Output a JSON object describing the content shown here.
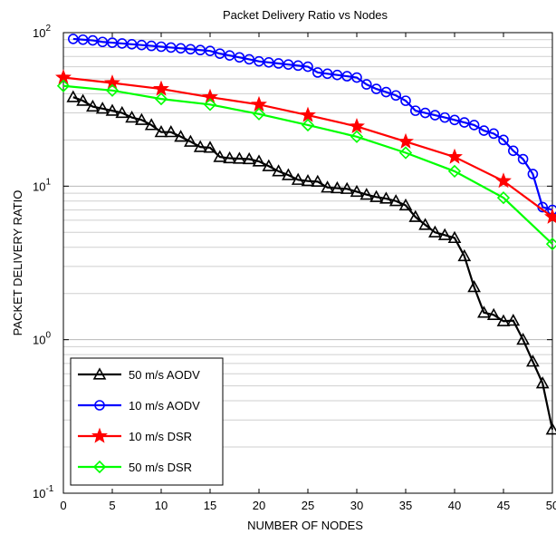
{
  "chart_data": {
    "type": "line",
    "title": "Packet Delivery Ratio vs Nodes",
    "xlabel": "NUMBER OF NODES",
    "ylabel": "PACKET DELIVERY RATIO",
    "xlim": [
      0,
      50
    ],
    "ylim": [
      0.1,
      100
    ],
    "yscale": "log",
    "grid": "y-major-and-minor",
    "x_ticks": [
      "0",
      "5",
      "10",
      "15",
      "20",
      "25",
      "30",
      "35",
      "40",
      "45",
      "50"
    ],
    "y_ticks": [
      {
        "base": "10",
        "exp": "-1",
        "value": 0.1
      },
      {
        "base": "10",
        "exp": "0",
        "value": 1
      },
      {
        "base": "10",
        "exp": "1",
        "value": 10
      },
      {
        "base": "10",
        "exp": "2",
        "value": 100
      }
    ],
    "legend_position": "bottom-left",
    "series": [
      {
        "name": "50 m/s AODV",
        "color": "#000000",
        "marker": "triangle",
        "x": [
          1,
          2,
          3,
          4,
          5,
          6,
          7,
          8,
          9,
          10,
          11,
          12,
          13,
          14,
          15,
          16,
          17,
          18,
          19,
          20,
          21,
          22,
          23,
          24,
          25,
          26,
          27,
          28,
          29,
          30,
          31,
          32,
          33,
          34,
          35,
          36,
          37,
          38,
          39,
          40,
          41,
          42,
          43,
          44,
          45,
          46,
          47,
          48,
          49,
          50
        ],
        "y": [
          38,
          36,
          33,
          32,
          31,
          30,
          28,
          27,
          25,
          22.5,
          22.5,
          21,
          19.5,
          18,
          17.8,
          15.5,
          15.2,
          15.1,
          15,
          14.5,
          13.5,
          12.5,
          11.8,
          11,
          10.8,
          10.7,
          9.8,
          9.7,
          9.6,
          9.2,
          8.8,
          8.5,
          8.3,
          8,
          7.5,
          6.3,
          5.6,
          5,
          4.8,
          4.6,
          3.5,
          2.2,
          1.5,
          1.45,
          1.32,
          1.33,
          1.0,
          0.72,
          0.52,
          0.26
        ]
      },
      {
        "name": "10 m/s AODV",
        "color": "#0000ff",
        "marker": "circle",
        "x": [
          1,
          2,
          3,
          4,
          5,
          6,
          7,
          8,
          9,
          10,
          11,
          12,
          13,
          14,
          15,
          16,
          17,
          18,
          19,
          20,
          21,
          22,
          23,
          24,
          25,
          26,
          27,
          28,
          29,
          30,
          31,
          32,
          33,
          34,
          35,
          36,
          37,
          38,
          39,
          40,
          41,
          42,
          43,
          44,
          45,
          46,
          47,
          48,
          49,
          50
        ],
        "y": [
          91,
          90,
          89,
          87,
          86,
          85,
          84,
          83,
          82,
          81,
          80,
          79,
          78,
          77,
          76,
          73,
          71,
          69,
          67,
          65,
          64,
          63,
          62,
          61,
          60,
          55,
          54,
          53,
          52,
          51,
          46,
          43,
          41,
          39,
          36,
          31,
          30,
          29,
          28,
          27,
          26,
          25,
          23,
          22,
          20,
          17,
          15,
          12,
          7.3,
          7.0
        ]
      },
      {
        "name": "10 m/s DSR",
        "color": "#ff0000",
        "marker": "star",
        "x": [
          0,
          5,
          10,
          15,
          20,
          25,
          30,
          35,
          40,
          45,
          50
        ],
        "y": [
          51,
          47,
          43,
          38,
          34,
          29,
          24.5,
          19.5,
          15.5,
          10.8,
          6.3
        ]
      },
      {
        "name": "50 m/s DSR",
        "color": "#00ff00",
        "marker": "diamond",
        "x": [
          0,
          5,
          10,
          15,
          20,
          25,
          30,
          35,
          40,
          45,
          50
        ],
        "y": [
          45,
          42,
          37,
          34,
          29.5,
          25,
          21,
          16.5,
          12.5,
          8.4,
          4.2
        ]
      }
    ]
  }
}
